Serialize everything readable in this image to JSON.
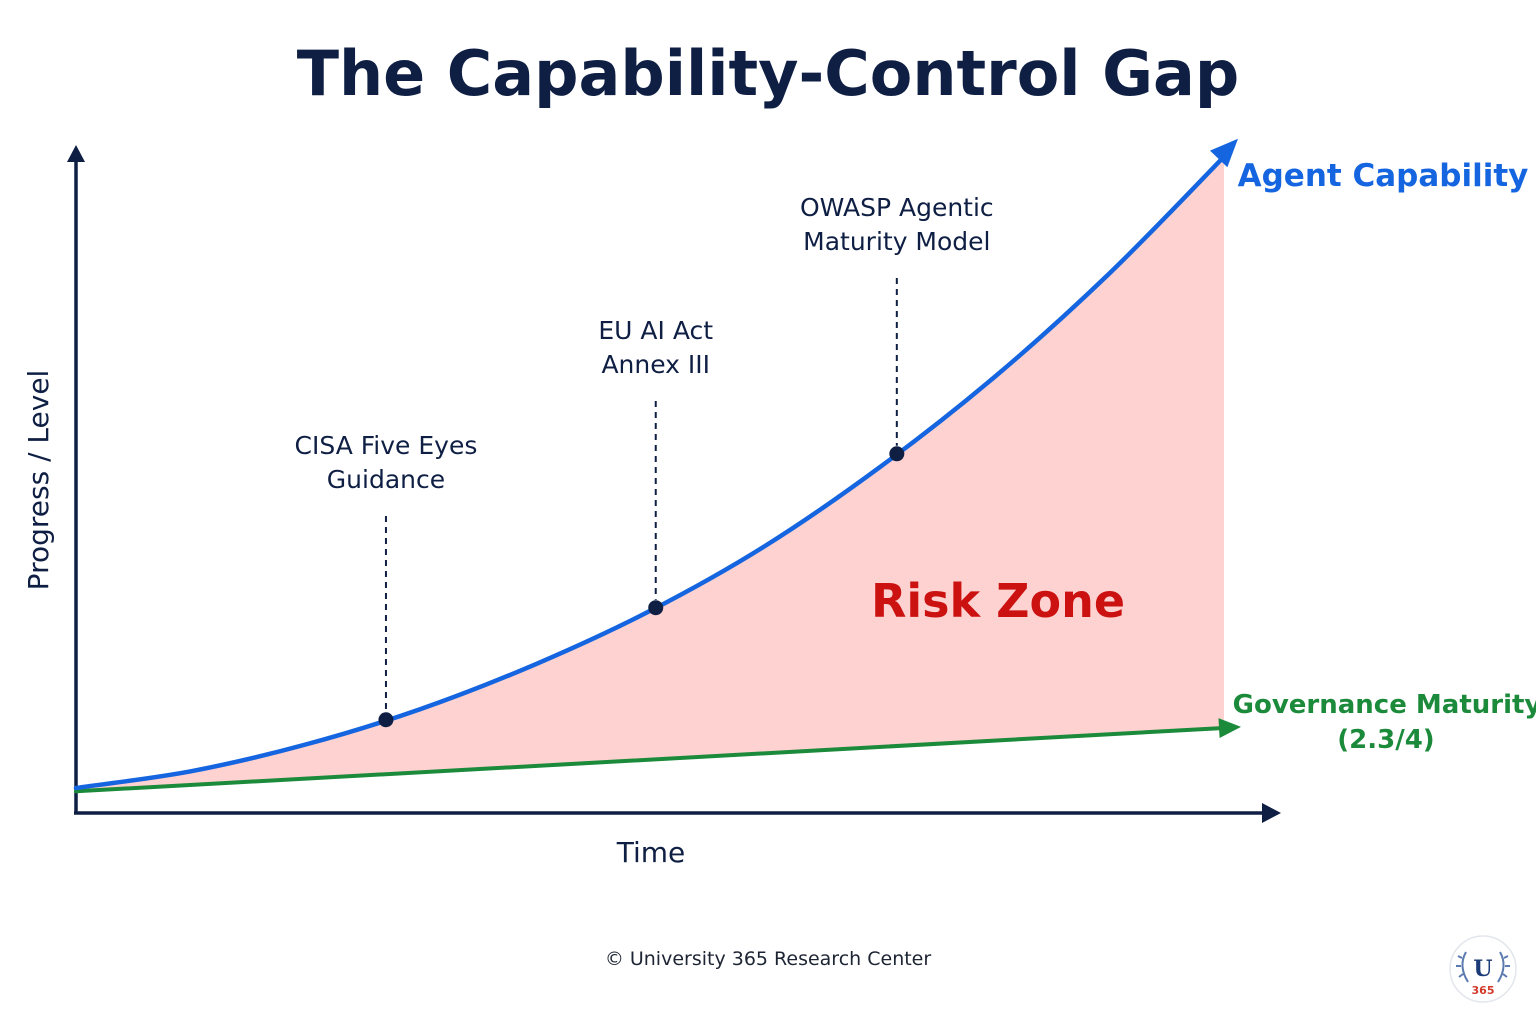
{
  "chart_data": {
    "type": "line",
    "title": "The Capability-Control Gap",
    "xlabel": "Time",
    "ylabel": "Progress / Level",
    "x_range": [
      0,
      1
    ],
    "y_range": [
      0,
      1
    ],
    "series": [
      {
        "name": "Agent Capability",
        "color": "#1565e0",
        "points": [
          [
            0,
            0.03
          ],
          [
            0.1,
            0.055
          ],
          [
            0.2,
            0.095
          ],
          [
            0.3,
            0.148
          ],
          [
            0.4,
            0.215
          ],
          [
            0.5,
            0.295
          ],
          [
            0.6,
            0.392
          ],
          [
            0.7,
            0.51
          ],
          [
            0.8,
            0.645
          ],
          [
            0.9,
            0.8
          ],
          [
            1.0,
            0.975
          ]
        ]
      },
      {
        "name": "Governance Maturity",
        "label_line2": "(2.3/4)",
        "color": "#1b8a3a",
        "points": [
          [
            0,
            0.025
          ],
          [
            1.0,
            0.12
          ]
        ]
      }
    ],
    "shaded_region": {
      "label": "Risk Zone",
      "between": [
        "Agent Capability",
        "Governance Maturity"
      ],
      "fill_color": "#fdd2d0",
      "label_color": "#cc1111"
    },
    "milestones": [
      {
        "label_lines": [
          "CISA Five Eyes",
          "Guidance"
        ],
        "x": 0.27
      },
      {
        "label_lines": [
          "EU AI Act",
          "Annex III"
        ],
        "x": 0.505
      },
      {
        "label_lines": [
          "OWASP Agentic",
          "Maturity Model"
        ],
        "x": 0.715
      }
    ],
    "axis_color": "#0f1f44",
    "grid": false
  },
  "footer": {
    "copyright": "© University 365 Research Center"
  },
  "logo": {
    "letter": "U",
    "number": "365"
  }
}
